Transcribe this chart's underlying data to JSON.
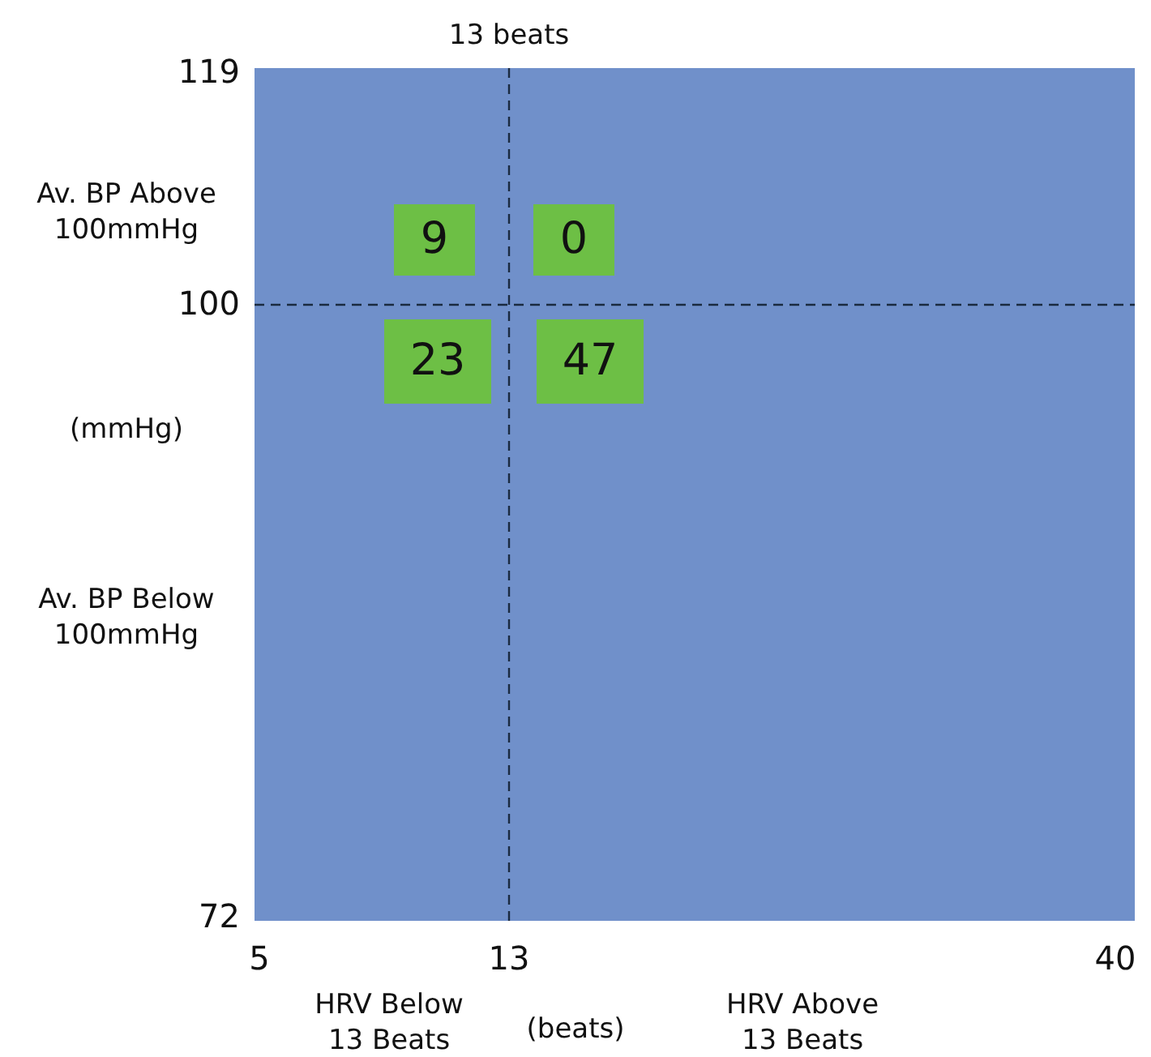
{
  "chart_data": {
    "type": "other",
    "xlabel": "(beats)",
    "ylabel": "(mmHg)",
    "categories": [
      null,
      null,
      null,
      null
    ],
    "values": [
      9,
      0,
      23,
      47
    ],
    "data_labels": true,
    "annotations": [
      "13 beats",
      "119",
      "100",
      "72",
      "5",
      "13",
      "40",
      "HRV Below 13 Beats",
      "HRV Above 13 Beats",
      "Av. BP Above 100mmHg",
      "Av. BP Below 100mmHg"
    ]
  }
}
